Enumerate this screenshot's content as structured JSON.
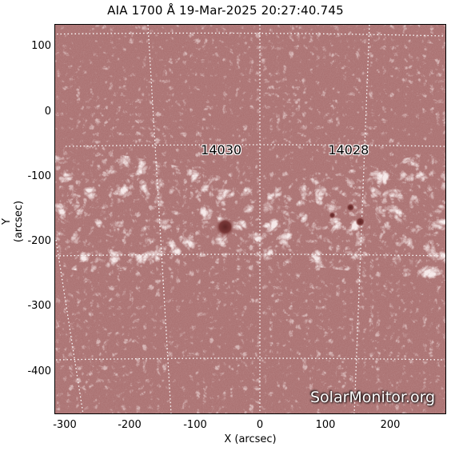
{
  "title": "AIA 1700 Å 19-Mar-2025 20:27:40.745",
  "xlabel": "X (arcsec)",
  "ylabel": "Y (arcsec)",
  "x_ticks": [
    "-300",
    "-200",
    "-100",
    "0",
    "100",
    "200"
  ],
  "y_ticks": [
    "100",
    "0",
    "-100",
    "-200",
    "-300",
    "-400"
  ],
  "watermark": "SolarMonitor.org",
  "regions": [
    {
      "label": "14030",
      "x": -50,
      "y": -60
    },
    {
      "label": "14028",
      "x": 145,
      "y": -60
    }
  ],
  "colors": {
    "background": "#a56a6a",
    "plage": "#f4e6e6",
    "sunspot": "#7a3838"
  }
}
